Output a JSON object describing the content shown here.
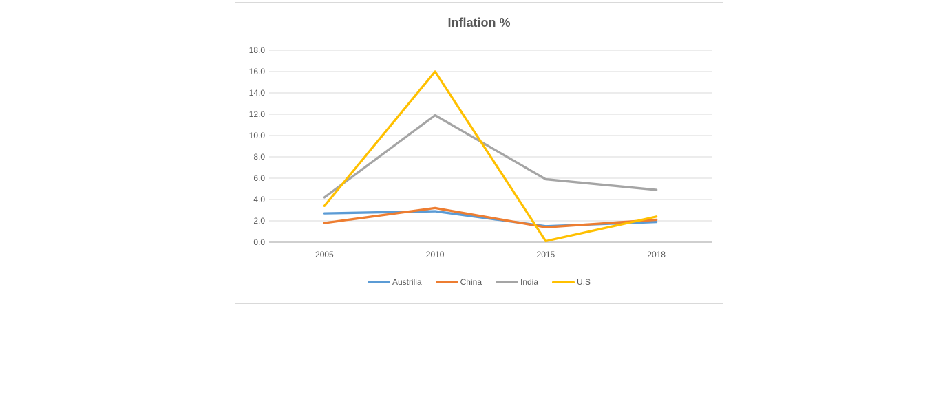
{
  "chart_data": {
    "type": "line",
    "title": "Inflation %",
    "categories": [
      "2005",
      "2010",
      "2015",
      "2018"
    ],
    "series": [
      {
        "name": "Austrilia",
        "color": "#5B9BD5",
        "values": [
          2.7,
          2.9,
          1.5,
          1.9
        ]
      },
      {
        "name": "China",
        "color": "#ED7D31",
        "values": [
          1.8,
          3.2,
          1.4,
          2.1
        ]
      },
      {
        "name": "India",
        "color": "#A5A5A5",
        "values": [
          4.2,
          11.9,
          5.9,
          4.9
        ]
      },
      {
        "name": "U.S",
        "color": "#FFC000",
        "values": [
          3.4,
          16.0,
          0.1,
          2.4
        ]
      }
    ],
    "xlabel": "",
    "ylabel": "",
    "ylim": [
      0,
      18
    ],
    "y_tick_labels": [
      "0.0",
      "2.0",
      "4.0",
      "6.0",
      "8.0",
      "10.0",
      "12.0",
      "14.0",
      "16.0",
      "18.0"
    ],
    "grid": "horizontal",
    "legend_position": "bottom",
    "colors": {
      "text": "#595959",
      "gridline": "#d9d9d9",
      "axis_line": "#bfbfbf",
      "card_border": "#d9d9d9",
      "background": "#ffffff"
    }
  }
}
